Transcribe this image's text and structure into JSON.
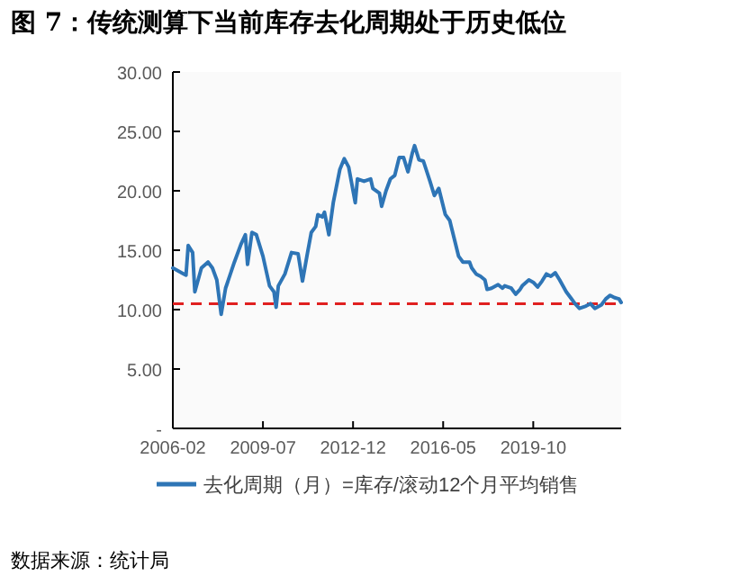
{
  "chart_data": {
    "type": "line",
    "title": "图 7：传统测算下当前库存去化周期处于历史低位",
    "x": [
      "2006-02",
      "2006-07",
      "2006-08",
      "2006-09",
      "2006-11",
      "2006-12",
      "2007-03",
      "2007-06",
      "2007-08",
      "2007-10",
      "2007-12",
      "2008-02",
      "2008-06",
      "2008-09",
      "2008-11",
      "2008-12",
      "2009-02",
      "2009-04",
      "2009-07",
      "2009-10",
      "2009-12",
      "2010-01",
      "2010-02",
      "2010-05",
      "2010-08",
      "2010-11",
      "2011-01",
      "2011-03",
      "2011-05",
      "2011-07",
      "2011-08",
      "2011-10",
      "2011-11",
      "2012-01",
      "2012-03",
      "2012-06",
      "2012-08",
      "2012-10",
      "2013-01",
      "2013-02",
      "2013-05",
      "2013-08",
      "2013-09",
      "2013-12",
      "2014-01",
      "2014-03",
      "2014-05",
      "2014-07",
      "2014-09",
      "2014-11",
      "2015-01",
      "2015-03",
      "2015-04",
      "2015-06",
      "2015-08",
      "2015-11",
      "2016-01",
      "2016-03",
      "2016-06",
      "2016-08",
      "2016-10",
      "2016-12",
      "2017-02",
      "2017-05",
      "2017-06",
      "2017-08",
      "2017-10",
      "2017-12",
      "2018-01",
      "2018-03",
      "2018-06",
      "2018-08",
      "2018-09",
      "2018-12",
      "2019-02",
      "2019-04",
      "2019-05",
      "2019-08",
      "2019-10",
      "2019-12",
      "2020-02",
      "2020-04",
      "2020-06",
      "2020-08",
      "2020-10",
      "2021-01",
      "2021-03",
      "2021-05",
      "2021-07",
      "2021-10",
      "2021-12",
      "2022-02",
      "2022-05",
      "2022-07",
      "2022-09",
      "2022-11",
      "2023-01",
      "2023-02"
    ],
    "series": [
      {
        "name": "去化周期（月）=库存/滚动12个月平均销售",
        "color": "#2e75b6",
        "values": [
          13.5,
          13.0,
          12.9,
          15.4,
          14.8,
          11.5,
          13.5,
          14.0,
          13.5,
          12.5,
          9.6,
          11.8,
          14.0,
          15.5,
          16.3,
          13.8,
          16.5,
          16.3,
          14.5,
          12.0,
          11.5,
          10.2,
          12.0,
          13.0,
          14.8,
          14.7,
          12.4,
          14.5,
          16.5,
          17.0,
          18.0,
          17.8,
          18.2,
          16.3,
          19.0,
          21.8,
          22.7,
          22.0,
          19.0,
          21.0,
          20.8,
          21.0,
          20.2,
          19.8,
          18.7,
          20.0,
          21.0,
          21.3,
          22.8,
          22.8,
          21.6,
          23.2,
          23.8,
          22.6,
          22.5,
          20.8,
          19.6,
          20.2,
          18.0,
          17.5,
          16.0,
          14.5,
          14.0,
          14.0,
          13.5,
          13.0,
          12.8,
          12.5,
          11.7,
          11.8,
          12.1,
          11.8,
          12.0,
          11.8,
          11.3,
          11.7,
          12.0,
          12.5,
          12.3,
          11.9,
          12.4,
          13.0,
          12.8,
          13.1,
          12.5,
          11.5,
          11.0,
          10.5,
          10.1,
          10.3,
          10.5,
          10.1,
          10.4,
          10.9,
          11.2,
          11.0,
          10.9,
          10.6
        ]
      }
    ],
    "xlim": [
      "2006-02",
      "2023-02"
    ],
    "xticks": [
      "2006-02",
      "2009-07",
      "2012-12",
      "2016-05",
      "2019-10"
    ],
    "ylim": [
      0,
      30
    ],
    "yticks": [
      {
        "value": 0,
        "label": "-"
      },
      {
        "value": 5,
        "label": "5.00"
      },
      {
        "value": 10,
        "label": "10.00"
      },
      {
        "value": 15,
        "label": "15.00"
      },
      {
        "value": 20,
        "label": "20.00"
      },
      {
        "value": 25,
        "label": "25.00"
      },
      {
        "value": 30,
        "label": "30.00"
      }
    ],
    "ref_lines": [
      {
        "axis": "y",
        "value": 10.5,
        "color": "#e02020",
        "line_style": "dashed"
      }
    ],
    "grid": false,
    "legend": "bottom",
    "marker": "none",
    "line_style": "solid",
    "annotations": [
      "数据来源：统计局"
    ]
  }
}
